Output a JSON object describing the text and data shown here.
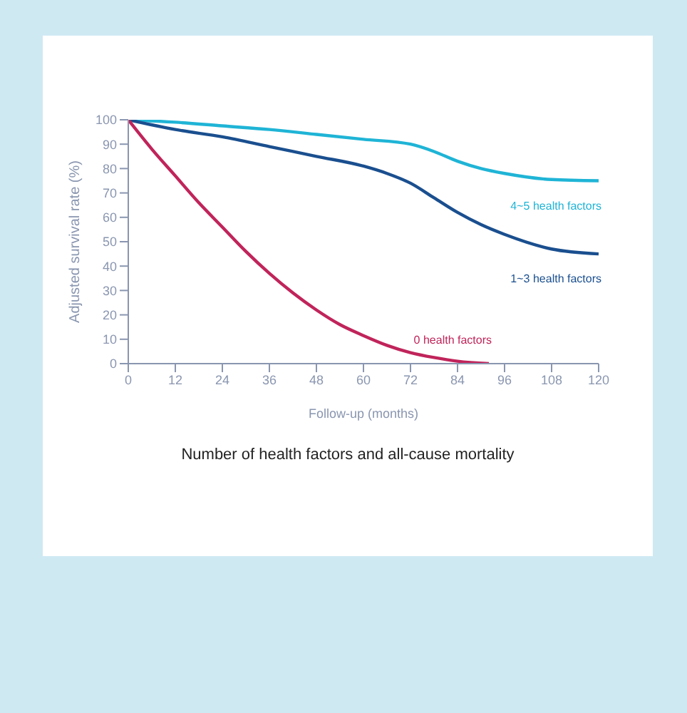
{
  "chart_data": {
    "type": "line",
    "title": "Number of health factors and all-cause mortality",
    "xlabel": "Follow-up (months)",
    "ylabel": "Adjusted survival rate (%)",
    "xlim": [
      0,
      120
    ],
    "xticks": [
      0,
      12,
      24,
      36,
      48,
      60,
      72,
      84,
      96,
      108,
      120
    ],
    "ylim": [
      0,
      100
    ],
    "yticks": [
      0,
      10,
      20,
      30,
      40,
      50,
      60,
      70,
      80,
      90,
      100
    ],
    "grid": false,
    "marker": "none",
    "line_style": "solid",
    "series": [
      {
        "name": "4~5 health factors",
        "color": "#1fb4d6",
        "x": [
          0,
          12,
          24,
          36,
          48,
          60,
          72,
          78,
          84,
          90,
          96,
          108,
          120
        ],
        "values": [
          100,
          99,
          97.5,
          96,
          94,
          92,
          90,
          87,
          83,
          80,
          78,
          75.5,
          75
        ]
      },
      {
        "name": "1~3 health factors",
        "color": "#1a4f8f",
        "x": [
          0,
          12,
          24,
          36,
          48,
          60,
          66,
          72,
          78,
          84,
          90,
          96,
          108,
          120
        ],
        "values": [
          100,
          96,
          93,
          89,
          85,
          81,
          78,
          74,
          68,
          62,
          57,
          53,
          47,
          45
        ]
      },
      {
        "name": "0 health factors",
        "color": "#c0245a",
        "x": [
          0,
          6,
          12,
          18,
          24,
          30,
          36,
          42,
          48,
          54,
          60,
          66,
          72,
          78,
          84,
          92
        ],
        "values": [
          100,
          88,
          77,
          66,
          56,
          46,
          37,
          29,
          22,
          16,
          11.5,
          7.5,
          4.5,
          2.5,
          1,
          0
        ]
      }
    ]
  }
}
